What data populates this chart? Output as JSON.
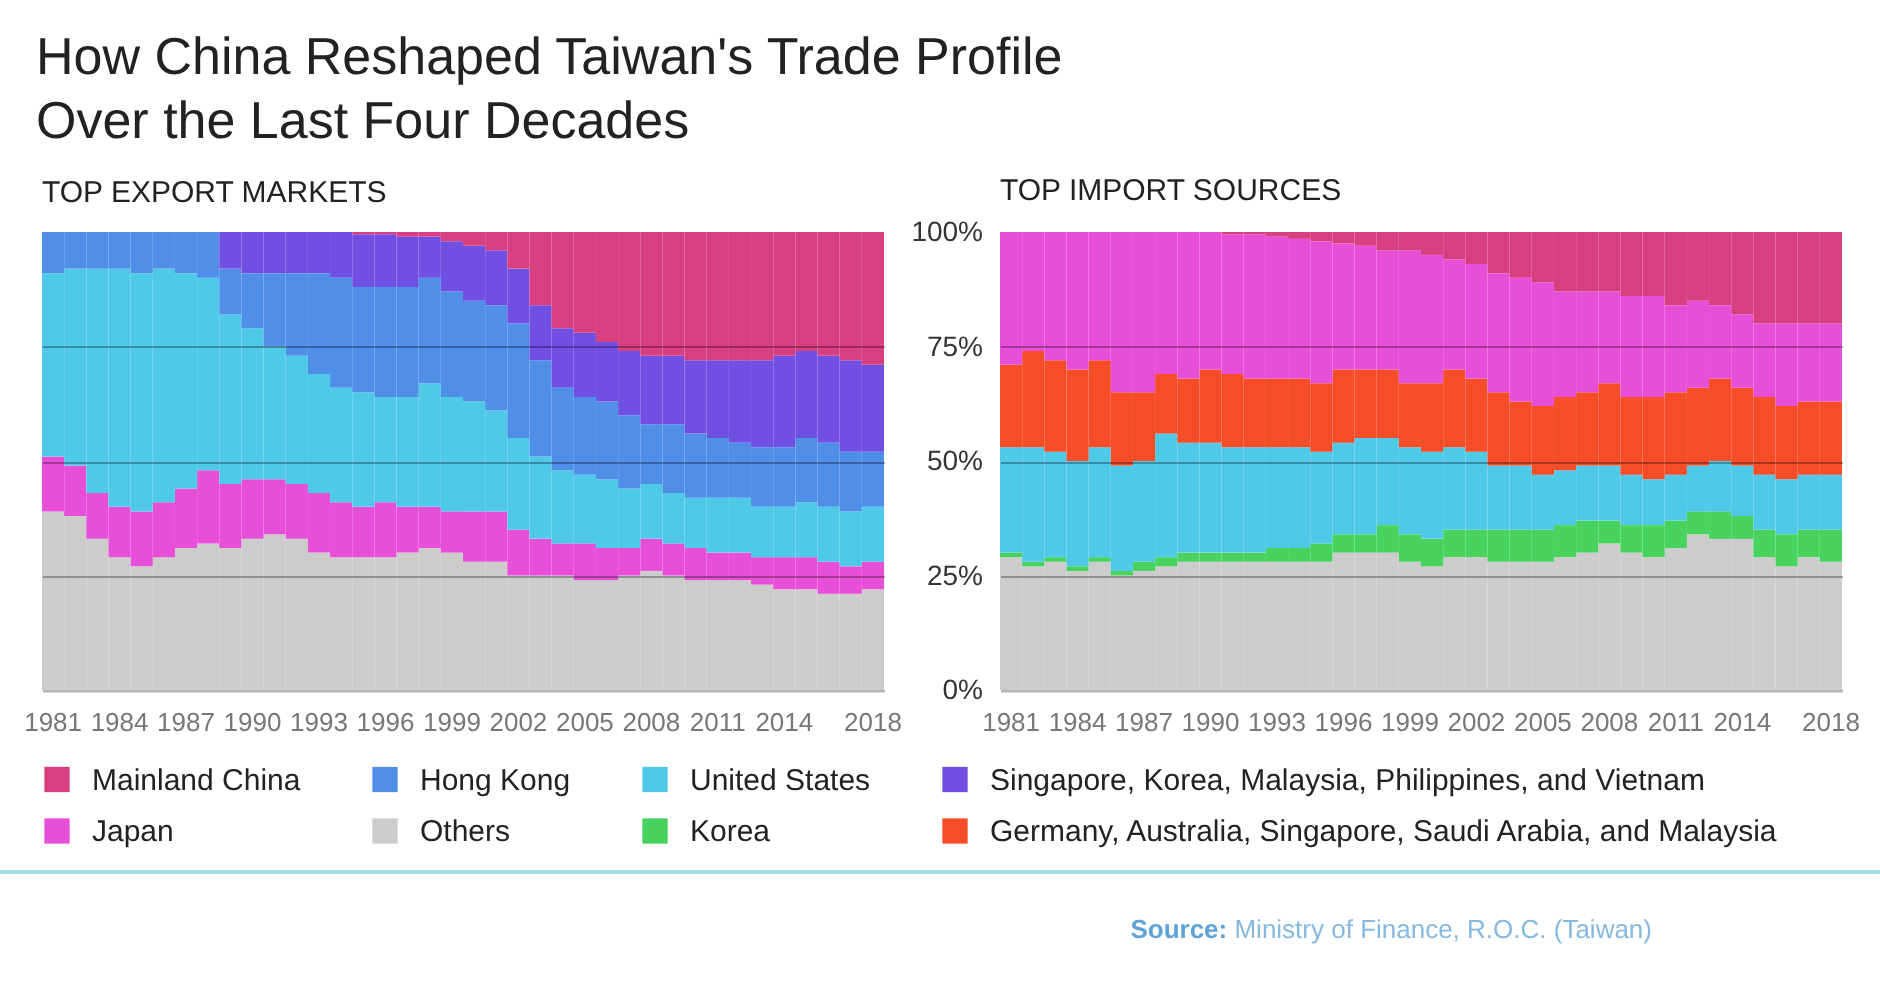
{
  "chart_data": [
    {
      "type": "bar",
      "title": "How China Reshaped Taiwan's Trade Profile Over the Last Four Decades",
      "subtitle": "TOP EXPORT MARKETS",
      "stacked": true,
      "grid": "y",
      "legend": "bottom",
      "tick_labels": "x",
      "ylim": [
        0,
        100
      ],
      "yticks": [
        0,
        25,
        50,
        75,
        100
      ],
      "categories": [
        "1981",
        null,
        null,
        "1984",
        null,
        null,
        "1987",
        null,
        null,
        "1990",
        null,
        null,
        "1993",
        null,
        null,
        "1996",
        null,
        null,
        "1999",
        null,
        null,
        "2002",
        null,
        null,
        "2005",
        null,
        null,
        "2008",
        null,
        null,
        "2011",
        null,
        null,
        "2014",
        null,
        null,
        null,
        "2018"
      ],
      "series": [
        {
          "name": "Others",
          "color": "#cccccc",
          "values": [
            39,
            38,
            33,
            29,
            27,
            29,
            31,
            32,
            31,
            33,
            34,
            33,
            30,
            29,
            29,
            29,
            30,
            31,
            30,
            28,
            28,
            25,
            25,
            25,
            24,
            24,
            25,
            26,
            25,
            24,
            24,
            24,
            23,
            22,
            22,
            21,
            21,
            22
          ]
        },
        {
          "name": "Japan",
          "color": "#e84fd9",
          "values": [
            12,
            11,
            10,
            11,
            12,
            12,
            13,
            16,
            14,
            13,
            12,
            12,
            13,
            12,
            11,
            12,
            10,
            9,
            9,
            11,
            11,
            10,
            8,
            7,
            8,
            7,
            6,
            7,
            7,
            7,
            6,
            6,
            6,
            7,
            7,
            7,
            6,
            6
          ]
        },
        {
          "name": "United States",
          "color": "#4fc9e8",
          "values": [
            40,
            43,
            49,
            52,
            52,
            51,
            47,
            42,
            37,
            33,
            29,
            28,
            26,
            25,
            25,
            23,
            24,
            27,
            25,
            24,
            22,
            20,
            18,
            16,
            15,
            15,
            13,
            12,
            11,
            11,
            12,
            12,
            11,
            11,
            12,
            12,
            12,
            12
          ]
        },
        {
          "name": "Hong Kong",
          "color": "#4f8fe8",
          "values": [
            9,
            8,
            8,
            8,
            9,
            8,
            9,
            10,
            10,
            12,
            16,
            18,
            22,
            24,
            23,
            24,
            24,
            23,
            23,
            22,
            23,
            25,
            21,
            18,
            17,
            17,
            16,
            13,
            15,
            14,
            13,
            12,
            13,
            13,
            14,
            14,
            13,
            12
          ]
        },
        {
          "name": "Singapore, Korea, Malaysia, Philippines, and Vietnam",
          "color": "#704fe3",
          "values": [
            null,
            null,
            null,
            null,
            null,
            null,
            null,
            null,
            8,
            9,
            9,
            9,
            9,
            10,
            11.5,
            11.5,
            11,
            9,
            11,
            12,
            12,
            12,
            12,
            13,
            14,
            13,
            14,
            15,
            15,
            16,
            17,
            18,
            19,
            20,
            19,
            19,
            20,
            19
          ]
        },
        {
          "name": "Mainland China",
          "color": "#d83f80",
          "values": [
            null,
            null,
            null,
            null,
            null,
            null,
            null,
            null,
            null,
            null,
            null,
            null,
            null,
            null,
            0.5,
            0.5,
            1,
            1,
            2,
            3,
            4,
            8,
            16,
            21,
            22,
            24,
            26,
            27,
            27,
            28,
            28,
            28,
            28,
            27,
            26,
            27,
            28,
            29
          ]
        }
      ]
    },
    {
      "type": "bar",
      "subtitle": "TOP IMPORT SOURCES",
      "stacked": true,
      "grid": "y",
      "legend": "bottom",
      "ylim": [
        0,
        100
      ],
      "yticks": [
        {
          "value": 0,
          "label": "0%"
        },
        {
          "value": 25,
          "label": "25%"
        },
        {
          "value": 50,
          "label": "50%"
        },
        {
          "value": 75,
          "label": "75%"
        },
        {
          "value": 100,
          "label": "100%"
        }
      ],
      "categories": [
        "1981",
        null,
        null,
        "1984",
        null,
        null,
        "1987",
        null,
        null,
        "1990",
        null,
        null,
        "1993",
        null,
        null,
        "1996",
        null,
        null,
        "1999",
        null,
        null,
        "2002",
        null,
        null,
        "2005",
        null,
        null,
        "2008",
        null,
        null,
        "2011",
        null,
        null,
        "2014",
        null,
        null,
        null,
        "2018"
      ],
      "series": [
        {
          "name": "Others",
          "color": "#cccccc",
          "values": [
            29,
            27,
            28,
            26,
            28,
            25,
            26,
            27,
            28,
            28,
            28,
            28,
            28,
            28,
            28,
            30,
            30,
            30,
            28,
            27,
            29,
            29,
            28,
            28,
            28,
            29,
            30,
            32,
            30,
            29,
            31,
            34,
            33,
            33,
            29,
            27,
            29,
            28
          ]
        },
        {
          "name": "Korea",
          "color": "#48d25e",
          "values": [
            1,
            1,
            1,
            1,
            1,
            1,
            2,
            2,
            2,
            2,
            2,
            2,
            3,
            3,
            4,
            4,
            4,
            6,
            6,
            6,
            6,
            6,
            7,
            7,
            7,
            7,
            7,
            5,
            6,
            7,
            6,
            5,
            6,
            5,
            6,
            7,
            6,
            7
          ]
        },
        {
          "name": "United States",
          "color": "#4fc9e8",
          "values": [
            23,
            25,
            23,
            23,
            24,
            23,
            22,
            27,
            24,
            24,
            23,
            23,
            22,
            22,
            20,
            20,
            21,
            19,
            19,
            19,
            18,
            17,
            14,
            14,
            12,
            12,
            12,
            12,
            11,
            10,
            10,
            10,
            11,
            11,
            12,
            12,
            12,
            12
          ]
        },
        {
          "name": "Germany, Australia, Singapore, Saudi Arabia, and Malaysia",
          "color": "#f54d28",
          "values": [
            18,
            21,
            20,
            20,
            19,
            16,
            15,
            13,
            14,
            16,
            16,
            15,
            15,
            15,
            15,
            16,
            15,
            15,
            14,
            15,
            17,
            16,
            16,
            14,
            15,
            16,
            16,
            18,
            17,
            18,
            18,
            17,
            18,
            17,
            17,
            16,
            16,
            16
          ]
        },
        {
          "name": "Japan",
          "color": "#e84fd9",
          "values": [
            29,
            26,
            28,
            30,
            28,
            35,
            35,
            31,
            32,
            30,
            30.5,
            31.5,
            31,
            30.5,
            31,
            27.5,
            27,
            26,
            29,
            28,
            24,
            25,
            26,
            27,
            27,
            23,
            22,
            20,
            22,
            22,
            19,
            19,
            16,
            16,
            16,
            18,
            17,
            17
          ]
        },
        {
          "name": "Mainland China",
          "color": "#d83f80",
          "values": [
            null,
            null,
            null,
            null,
            null,
            null,
            null,
            null,
            null,
            null,
            0.5,
            0.5,
            1,
            1.5,
            2,
            2.5,
            3,
            4,
            4,
            5,
            6,
            7,
            9,
            10,
            11,
            13,
            13,
            13,
            14,
            14,
            16,
            15,
            16,
            18,
            20,
            20,
            20,
            20
          ]
        }
      ],
      "annotations": [
        "Source: Ministry of Finance, R.O.C. (Taiwan)"
      ]
    }
  ]
}
